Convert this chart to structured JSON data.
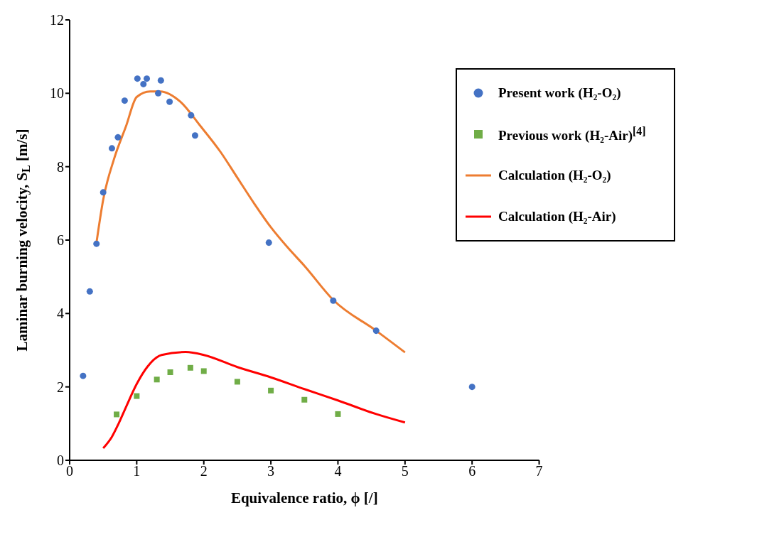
{
  "chart_data": {
    "type": "scatter",
    "xlabel": "Equivalence ratio, ϕ [/]",
    "ylabel": "Laminar burning velocity, S$_{L}$ [m/s]",
    "xlim": [
      0,
      7
    ],
    "xticks": [
      0,
      1,
      2,
      3,
      4,
      5,
      6,
      7
    ],
    "ylim": [
      0,
      12
    ],
    "yticks": [
      0,
      2,
      4,
      6,
      8,
      10,
      12
    ],
    "grid": false,
    "legend": "top right",
    "series": [
      {
        "name": "Present work (H₂-O₂)",
        "marker": "circle",
        "color": "#4472c4",
        "x": [
          0.2,
          0.3,
          0.4,
          0.5,
          0.63,
          0.72,
          0.82,
          1.01,
          1.1,
          1.15,
          1.32,
          1.36,
          1.49,
          1.81,
          1.87,
          2.97,
          3.93,
          4.57,
          6.0
        ],
        "values": [
          2.3,
          4.6,
          5.9,
          7.3,
          8.5,
          8.8,
          9.8,
          10.4,
          10.25,
          10.4,
          10.0,
          10.35,
          9.77,
          9.4,
          8.85,
          5.93,
          4.35,
          3.53,
          2.0
        ]
      },
      {
        "name": "Previous work (H₂-Air)$^{[4]}$",
        "marker": "square",
        "color": "#70ad47",
        "x": [
          0.7,
          1.0,
          1.3,
          1.5,
          1.8,
          2.0,
          2.5,
          3.0,
          3.5,
          4.0
        ],
        "values": [
          1.25,
          1.75,
          2.2,
          2.4,
          2.52,
          2.43,
          2.14,
          1.9,
          1.65,
          1.26
        ]
      },
      {
        "name": "Calculation (H₂-O₂)",
        "type": "line",
        "marker": "none",
        "color": "#ed7d31",
        "x": [
          0.4,
          0.5,
          0.66,
          0.84,
          1.0,
          1.2,
          1.35,
          1.65,
          1.94,
          2.25,
          2.5,
          2.75,
          3.0,
          3.25,
          3.5,
          3.93,
          4.57,
          5.0
        ],
        "values": [
          5.93,
          7.1,
          8.2,
          9.1,
          9.9,
          10.05,
          10.05,
          9.77,
          9.13,
          8.4,
          7.7,
          7.0,
          6.35,
          5.8,
          5.3,
          4.37,
          3.53,
          2.94
        ]
      },
      {
        "name": "Calculation (H₂-Air)",
        "type": "line",
        "marker": "none",
        "color": "#ff0000",
        "x": [
          0.5,
          0.63,
          0.73,
          0.84,
          1.0,
          1.16,
          1.37,
          1.73,
          2.0,
          2.5,
          3.0,
          3.5,
          4.0,
          4.57,
          5.0
        ],
        "values": [
          0.33,
          0.64,
          1.0,
          1.45,
          2.08,
          2.55,
          2.87,
          2.95,
          2.87,
          2.54,
          2.26,
          1.94,
          1.63,
          1.26,
          1.03
        ]
      }
    ]
  }
}
